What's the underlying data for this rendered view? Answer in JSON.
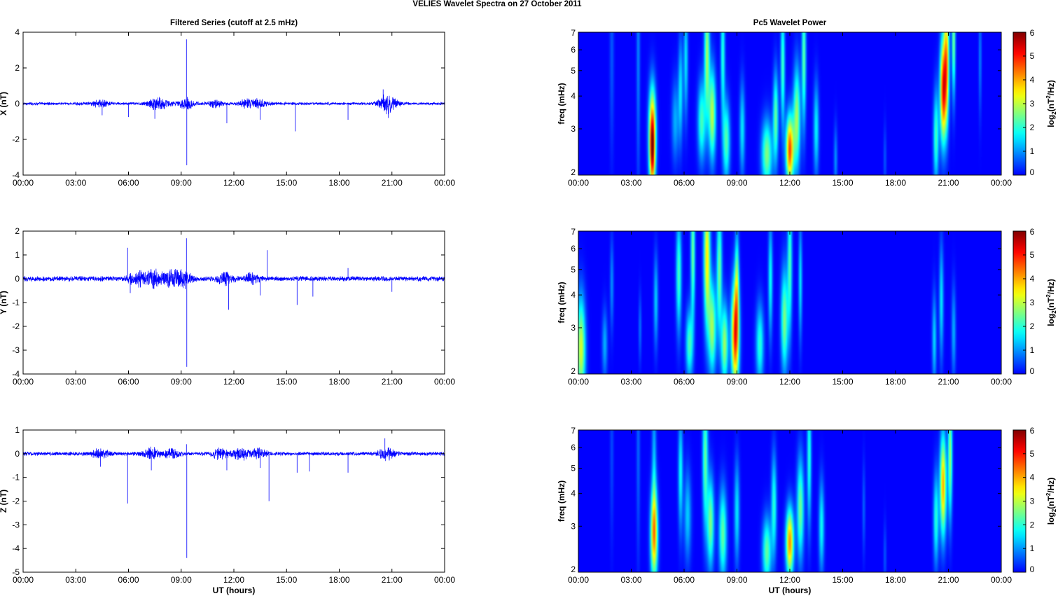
{
  "figure": {
    "title": "VELIES Wavelet Spectra on 27 October   2011"
  },
  "chart_data": [
    {
      "type": "line",
      "panel": "filtered-x",
      "title": "Filtered Series (cutoff at 2.5 mHz)",
      "xlabel": "",
      "ylabel": "X (nT)",
      "x_unit": "hours",
      "xlim": [
        0,
        24
      ],
      "ylim": [
        -4,
        4
      ],
      "x_ticks": [
        0,
        3,
        6,
        9,
        12,
        15,
        18,
        21,
        24
      ],
      "x_tick_labels": [
        "00:00",
        "03:00",
        "06:00",
        "09:00",
        "12:00",
        "15:00",
        "18:00",
        "21:00",
        "00:00"
      ],
      "y_ticks": [
        -4,
        -2,
        0,
        2,
        4
      ],
      "y_tick_labels": [
        "-4",
        "-2",
        "0",
        "2",
        "4"
      ],
      "color": "#0000ff",
      "baseline_noise": 0.06,
      "activity": [
        [
          4.4,
          0.14
        ],
        [
          7.5,
          0.18
        ],
        [
          8.0,
          0.14
        ],
        [
          9.3,
          0.22
        ],
        [
          11.0,
          0.15
        ],
        [
          12.8,
          0.17
        ],
        [
          13.5,
          0.14
        ],
        [
          20.6,
          0.22
        ],
        [
          20.9,
          0.2
        ]
      ],
      "spikes": [
        [
          4.5,
          -0.65
        ],
        [
          6.0,
          -0.75
        ],
        [
          7.5,
          -0.85
        ],
        [
          9.3,
          3.6
        ],
        [
          9.32,
          -3.45
        ],
        [
          11.6,
          -1.1
        ],
        [
          13.5,
          -0.9
        ],
        [
          15.5,
          -1.55
        ],
        [
          18.5,
          -0.9
        ],
        [
          20.5,
          0.8
        ],
        [
          20.8,
          -0.8
        ]
      ]
    },
    {
      "type": "heatmap",
      "panel": "wavelet-x",
      "title": "Pc5 Wavelet Power",
      "xlabel": "",
      "ylabel": "freq (mHz)",
      "y_scale": "log",
      "xlim": [
        0,
        24
      ],
      "ylim": [
        2,
        7
      ],
      "x_ticks": [
        0,
        3,
        6,
        9,
        12,
        15,
        18,
        21,
        24
      ],
      "x_tick_labels": [
        "00:00",
        "03:00",
        "06:00",
        "09:00",
        "12:00",
        "15:00",
        "18:00",
        "21:00",
        "00:00"
      ],
      "y_ticks": [
        2,
        3,
        4,
        5,
        6,
        7
      ],
      "y_tick_labels": [
        "2",
        "3",
        "4",
        "5",
        "6",
        "7"
      ],
      "colorbar": {
        "label": "log",
        "label_sub": "2",
        "label_rest": "(nT",
        "label_sup": "2",
        "label_end": "/Hz)",
        "range": [
          0,
          6
        ],
        "ticks": [
          0,
          1,
          2,
          3,
          4,
          5,
          6
        ],
        "tick_labels": [
          "0",
          "1",
          "2",
          "3",
          "4",
          "5",
          "6"
        ]
      },
      "blobs": [
        [
          1.9,
          6.0,
          0.12,
          0.9,
          0.6
        ],
        [
          3.4,
          6.0,
          0.1,
          1.2,
          0.9
        ],
        [
          4.2,
          2.9,
          0.2,
          0.4,
          4.6
        ],
        [
          4.2,
          2.3,
          0.15,
          0.3,
          2.5
        ],
        [
          5.5,
          3.2,
          0.2,
          0.35,
          1.2
        ],
        [
          5.8,
          4.2,
          0.13,
          0.45,
          1.6
        ],
        [
          6.1,
          5.5,
          0.12,
          0.5,
          1.6
        ],
        [
          7.0,
          3.2,
          0.22,
          0.35,
          2.2
        ],
        [
          7.3,
          5.8,
          0.15,
          0.55,
          2.8
        ],
        [
          7.6,
          3.4,
          0.2,
          0.4,
          3.0
        ],
        [
          8.4,
          2.7,
          0.2,
          0.35,
          2.3
        ],
        [
          8.2,
          5.7,
          0.12,
          0.55,
          2.0
        ],
        [
          9.3,
          3.0,
          0.15,
          0.4,
          1.6
        ],
        [
          10.7,
          2.4,
          0.3,
          0.3,
          2.6
        ],
        [
          11.2,
          3.3,
          0.15,
          0.4,
          2.4
        ],
        [
          11.6,
          5.2,
          0.12,
          0.55,
          2.2
        ],
        [
          12.0,
          2.5,
          0.22,
          0.3,
          4.7
        ],
        [
          12.4,
          3.3,
          0.2,
          0.45,
          2.8
        ],
        [
          12.8,
          5.6,
          0.12,
          0.6,
          2.4
        ],
        [
          13.5,
          3.0,
          0.15,
          0.4,
          1.7
        ],
        [
          14.6,
          2.3,
          0.1,
          0.3,
          1.0
        ],
        [
          17.4,
          2.3,
          0.08,
          0.3,
          0.6
        ],
        [
          20.3,
          2.8,
          0.15,
          0.4,
          2.2
        ],
        [
          20.7,
          4.2,
          0.18,
          0.45,
          4.8
        ],
        [
          20.9,
          5.5,
          0.15,
          0.55,
          3.6
        ],
        [
          21.3,
          6.5,
          0.1,
          0.5,
          2.6
        ],
        [
          22.8,
          5.6,
          0.08,
          0.5,
          0.9
        ]
      ]
    },
    {
      "type": "line",
      "panel": "filtered-y",
      "title": "",
      "xlabel": "",
      "ylabel": "Y (nT)",
      "x_unit": "hours",
      "xlim": [
        0,
        24
      ],
      "ylim": [
        -4,
        2
      ],
      "x_ticks": [
        0,
        3,
        6,
        9,
        12,
        15,
        18,
        21,
        24
      ],
      "x_tick_labels": [
        "00:00",
        "03:00",
        "06:00",
        "09:00",
        "12:00",
        "15:00",
        "18:00",
        "21:00",
        "00:00"
      ],
      "y_ticks": [
        -4,
        -3,
        -2,
        -1,
        0,
        1,
        2
      ],
      "y_tick_labels": [
        "-4",
        "-3",
        "-2",
        "-1",
        "0",
        "1",
        "2"
      ],
      "color": "#0000ff",
      "baseline_noise": 0.08,
      "activity": [
        [
          6.5,
          0.22
        ],
        [
          7.5,
          0.28
        ],
        [
          8.5,
          0.22
        ],
        [
          9.2,
          0.24
        ],
        [
          11.5,
          0.16
        ],
        [
          13.0,
          0.12
        ]
      ],
      "spikes": [
        [
          5.95,
          1.3
        ],
        [
          6.1,
          -0.6
        ],
        [
          9.3,
          1.7
        ],
        [
          9.32,
          -3.7
        ],
        [
          11.7,
          -1.3
        ],
        [
          13.5,
          -0.7
        ],
        [
          13.9,
          1.2
        ],
        [
          15.6,
          -1.1
        ],
        [
          16.5,
          -0.75
        ],
        [
          18.5,
          0.45
        ],
        [
          21.0,
          -0.55
        ]
      ]
    },
    {
      "type": "heatmap",
      "panel": "wavelet-y",
      "title": "",
      "xlabel": "",
      "ylabel": "freq (mHz)",
      "y_scale": "log",
      "xlim": [
        0,
        24
      ],
      "ylim": [
        2,
        7
      ],
      "x_ticks": [
        0,
        3,
        6,
        9,
        12,
        15,
        18,
        21,
        24
      ],
      "x_tick_labels": [
        "00:00",
        "03:00",
        "06:00",
        "09:00",
        "12:00",
        "15:00",
        "18:00",
        "21:00",
        "00:00"
      ],
      "y_ticks": [
        2,
        3,
        4,
        5,
        6,
        7
      ],
      "y_tick_labels": [
        "2",
        "3",
        "4",
        "5",
        "6",
        "7"
      ],
      "colorbar": {
        "label": "log",
        "label_sub": "2",
        "label_rest": "(nT",
        "label_sup": "2",
        "label_end": "/Hz)",
        "range": [
          0,
          6
        ],
        "ticks": [
          0,
          1,
          2,
          3,
          4,
          5,
          6
        ],
        "tick_labels": [
          "0",
          "1",
          "2",
          "3",
          "4",
          "5",
          "6"
        ]
      },
      "blobs": [
        [
          0.15,
          2.5,
          0.25,
          0.45,
          3.2
        ],
        [
          1.5,
          2.6,
          0.15,
          0.3,
          1.2
        ],
        [
          1.9,
          4.4,
          0.1,
          0.4,
          1.0
        ],
        [
          3.5,
          3.0,
          0.08,
          0.3,
          0.8
        ],
        [
          4.4,
          3.8,
          0.12,
          0.4,
          1.4
        ],
        [
          5.7,
          4.8,
          0.15,
          0.5,
          2.2
        ],
        [
          6.3,
          2.6,
          0.2,
          0.3,
          2.2
        ],
        [
          6.5,
          5.8,
          0.12,
          0.6,
          2.5
        ],
        [
          7.3,
          5.6,
          0.18,
          0.6,
          3.6
        ],
        [
          7.6,
          3.0,
          0.22,
          0.4,
          2.8
        ],
        [
          8.0,
          5.0,
          0.15,
          0.55,
          2.5
        ],
        [
          8.3,
          2.6,
          0.2,
          0.35,
          2.8
        ],
        [
          8.9,
          2.8,
          0.22,
          0.45,
          4.9
        ],
        [
          9.0,
          4.5,
          0.12,
          0.45,
          2.2
        ],
        [
          10.3,
          2.6,
          0.22,
          0.35,
          2.0
        ],
        [
          10.9,
          4.6,
          0.12,
          0.5,
          1.8
        ],
        [
          11.7,
          3.2,
          0.2,
          0.45,
          2.6
        ],
        [
          12.0,
          5.3,
          0.13,
          0.6,
          2.2
        ],
        [
          12.6,
          4.5,
          0.1,
          0.5,
          1.6
        ],
        [
          20.2,
          2.7,
          0.12,
          0.4,
          1.5
        ],
        [
          20.6,
          3.8,
          0.12,
          0.5,
          1.6
        ],
        [
          21.3,
          2.9,
          0.12,
          0.4,
          1.2
        ]
      ]
    },
    {
      "type": "line",
      "panel": "filtered-z",
      "title": "",
      "xlabel": "UT (hours)",
      "ylabel": "Z (nT)",
      "x_unit": "hours",
      "xlim": [
        0,
        24
      ],
      "ylim": [
        -5,
        1
      ],
      "x_ticks": [
        0,
        3,
        6,
        9,
        12,
        15,
        18,
        21,
        24
      ],
      "x_tick_labels": [
        "00:00",
        "03:00",
        "06:00",
        "09:00",
        "12:00",
        "15:00",
        "18:00",
        "21:00",
        "00:00"
      ],
      "y_ticks": [
        -5,
        -4,
        -3,
        -2,
        -1,
        0,
        1
      ],
      "y_tick_labels": [
        "-5",
        "-4",
        "-3",
        "-2",
        "-1",
        "0",
        "1"
      ],
      "color": "#0000ff",
      "baseline_noise": 0.06,
      "activity": [
        [
          4.4,
          0.14
        ],
        [
          7.3,
          0.16
        ],
        [
          8.5,
          0.14
        ],
        [
          11.2,
          0.16
        ],
        [
          12.4,
          0.18
        ],
        [
          13.4,
          0.14
        ],
        [
          20.7,
          0.2
        ]
      ],
      "spikes": [
        [
          4.4,
          -0.55
        ],
        [
          5.95,
          -2.1
        ],
        [
          7.3,
          -0.7
        ],
        [
          9.3,
          0.4
        ],
        [
          9.32,
          -4.4
        ],
        [
          11.6,
          -0.7
        ],
        [
          13.5,
          -0.6
        ],
        [
          14.0,
          -2.0
        ],
        [
          15.6,
          -0.8
        ],
        [
          16.3,
          -0.75
        ],
        [
          18.5,
          -0.8
        ],
        [
          20.6,
          0.65
        ]
      ]
    },
    {
      "type": "heatmap",
      "panel": "wavelet-z",
      "title": "",
      "xlabel": "UT (hours)",
      "ylabel": "freq (mHz)",
      "y_scale": "log",
      "xlim": [
        0,
        24
      ],
      "ylim": [
        2,
        7
      ],
      "x_ticks": [
        0,
        3,
        6,
        9,
        12,
        15,
        18,
        21,
        24
      ],
      "x_tick_labels": [
        "00:00",
        "03:00",
        "06:00",
        "09:00",
        "12:00",
        "15:00",
        "18:00",
        "21:00",
        "00:00"
      ],
      "y_ticks": [
        2,
        3,
        4,
        5,
        6,
        7
      ],
      "y_tick_labels": [
        "2",
        "3",
        "4",
        "5",
        "6",
        "7"
      ],
      "colorbar": {
        "label": "log",
        "label_sub": "2",
        "label_rest": "(nT",
        "label_sup": "2",
        "label_end": "/Hz)",
        "range": [
          0,
          6
        ],
        "ticks": [
          0,
          1,
          2,
          3,
          4,
          5,
          6
        ],
        "tick_labels": [
          "0",
          "1",
          "2",
          "3",
          "4",
          "5",
          "6"
        ]
      },
      "blobs": [
        [
          1.9,
          6.0,
          0.1,
          0.8,
          0.5
        ],
        [
          3.4,
          6.0,
          0.1,
          1.0,
          0.7
        ],
        [
          4.3,
          2.8,
          0.2,
          0.4,
          4.2
        ],
        [
          4.3,
          5.5,
          0.12,
          0.6,
          1.2
        ],
        [
          5.8,
          4.8,
          0.13,
          0.5,
          1.8
        ],
        [
          6.2,
          3.3,
          0.2,
          0.4,
          1.4
        ],
        [
          7.2,
          5.5,
          0.15,
          0.6,
          2.4
        ],
        [
          7.5,
          3.1,
          0.2,
          0.4,
          2.6
        ],
        [
          8.2,
          2.8,
          0.22,
          0.4,
          2.4
        ],
        [
          9.0,
          3.4,
          0.15,
          0.45,
          1.6
        ],
        [
          10.7,
          2.4,
          0.25,
          0.3,
          2.4
        ],
        [
          11.1,
          3.6,
          0.15,
          0.45,
          2.0
        ],
        [
          12.0,
          2.6,
          0.22,
          0.3,
          4.2
        ],
        [
          12.6,
          3.5,
          0.2,
          0.45,
          2.5
        ],
        [
          13.1,
          5.5,
          0.12,
          0.6,
          2.0
        ],
        [
          13.8,
          3.0,
          0.15,
          0.4,
          1.8
        ],
        [
          16.2,
          3.5,
          0.08,
          0.4,
          0.7
        ],
        [
          17.4,
          2.3,
          0.08,
          0.3,
          0.6
        ],
        [
          20.3,
          3.2,
          0.15,
          0.4,
          2.0
        ],
        [
          20.7,
          4.3,
          0.18,
          0.45,
          4.0
        ],
        [
          21.1,
          5.6,
          0.12,
          0.55,
          2.8
        ]
      ]
    }
  ]
}
